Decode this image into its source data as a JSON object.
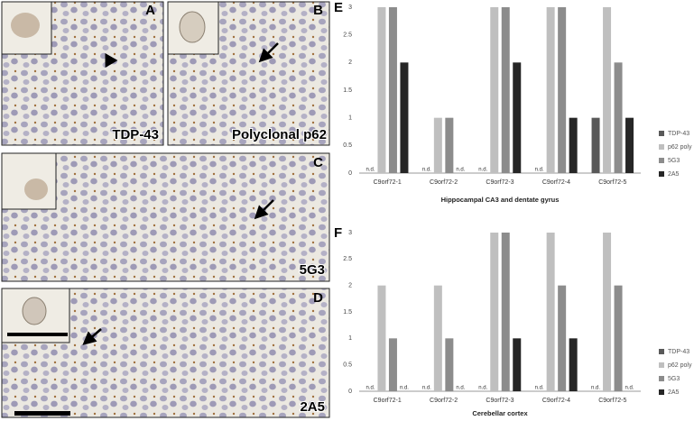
{
  "panels": [
    {
      "label": "A",
      "stain": "TDP-43"
    },
    {
      "label": "B",
      "stain": "Polyclonal p62"
    },
    {
      "label": "C",
      "stain": "5G3"
    },
    {
      "label": "D",
      "stain": "2A5"
    }
  ],
  "chart_data": [
    {
      "type": "bar",
      "panel": "E",
      "title": "Hippocampal CA3 and dentate gyrus",
      "categories": [
        "C9orf72-1",
        "C9orf72-2",
        "C9orf72-3",
        "C9orf72-4",
        "C9orf72-5"
      ],
      "series": [
        {
          "name": "TDP-43",
          "color": "#595959",
          "values": [
            null,
            null,
            null,
            null,
            1
          ],
          "value_labels": [
            "n.d.",
            "n.d.",
            "n.d.",
            "n.d.",
            null
          ]
        },
        {
          "name": "p62 poly",
          "color": "#bfbfbf",
          "values": [
            3,
            1,
            3,
            3,
            3
          ]
        },
        {
          "name": "5G3",
          "color": "#8c8c8c",
          "values": [
            3,
            1,
            3,
            3,
            2
          ]
        },
        {
          "name": "2A5",
          "color": "#262626",
          "values": [
            2,
            null,
            2,
            1,
            1
          ],
          "value_labels": [
            null,
            "n.d.",
            null,
            null,
            null
          ]
        }
      ],
      "ylim": [
        0,
        3
      ],
      "yticks": [
        0,
        0.5,
        1,
        1.5,
        2,
        2.5,
        3
      ],
      "grid": false,
      "legend": "right"
    },
    {
      "type": "bar",
      "panel": "F",
      "title": "Cerebellar cortex",
      "categories": [
        "C9orf72-1",
        "C9orf72-2",
        "C9orf72-3",
        "C9orf72-4",
        "C9orf72-5"
      ],
      "series": [
        {
          "name": "TDP-43",
          "color": "#595959",
          "values": [
            null,
            null,
            null,
            null,
            null
          ],
          "value_labels": [
            "n.d.",
            "n.d.",
            "n.d.",
            "n.d.",
            "n.d."
          ]
        },
        {
          "name": "p62 poly",
          "color": "#bfbfbf",
          "values": [
            2,
            2,
            3,
            3,
            3
          ]
        },
        {
          "name": "5G3",
          "color": "#8c8c8c",
          "values": [
            1,
            1,
            3,
            2,
            2
          ]
        },
        {
          "name": "2A5",
          "color": "#262626",
          "values": [
            null,
            null,
            1,
            1,
            null
          ],
          "value_labels": [
            "n.d.",
            "n.d.",
            null,
            null,
            "n.d."
          ]
        }
      ],
      "ylim": [
        0,
        3
      ],
      "yticks": [
        0,
        0.5,
        1,
        1.5,
        2,
        2.5,
        3
      ],
      "grid": false,
      "legend": "right"
    }
  ]
}
